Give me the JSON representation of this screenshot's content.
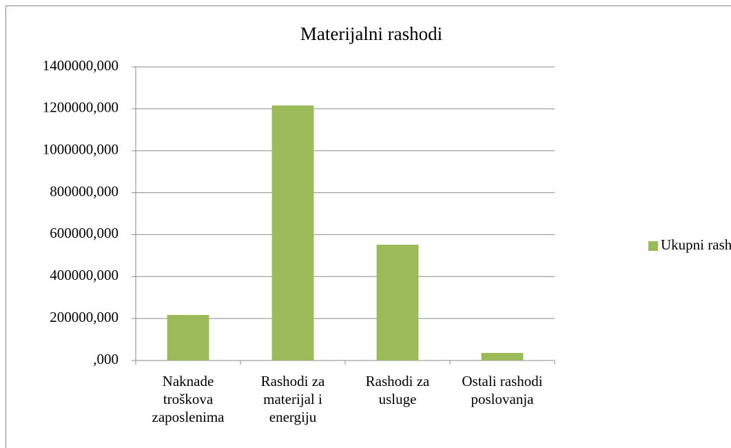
{
  "chart_data": {
    "type": "bar",
    "title": "Materijalni rashodi",
    "categories": [
      "Naknade troškova zaposlenima",
      "Rashodi za materijal i energiju",
      "Rashodi za usluge",
      "Ostali rashodi poslovanja"
    ],
    "series": [
      {
        "name": "Ukupni rashodi",
        "color": "#9bbb59",
        "values": [
          217000,
          1216000,
          552000,
          36000
        ]
      }
    ],
    "ylim": [
      0,
      1400000
    ],
    "yticks": [
      {
        "value": 0,
        "label": ",000"
      },
      {
        "value": 200000,
        "label": "200000,000"
      },
      {
        "value": 400000,
        "label": "400000,000"
      },
      {
        "value": 600000,
        "label": "600000,000"
      },
      {
        "value": 800000,
        "label": "800000,000"
      },
      {
        "value": 1000000,
        "label": "1000000,000"
      },
      {
        "value": 1200000,
        "label": "1200000,000"
      },
      {
        "value": 1400000,
        "label": "1400000,000"
      }
    ],
    "grid": true,
    "legend": "right"
  }
}
